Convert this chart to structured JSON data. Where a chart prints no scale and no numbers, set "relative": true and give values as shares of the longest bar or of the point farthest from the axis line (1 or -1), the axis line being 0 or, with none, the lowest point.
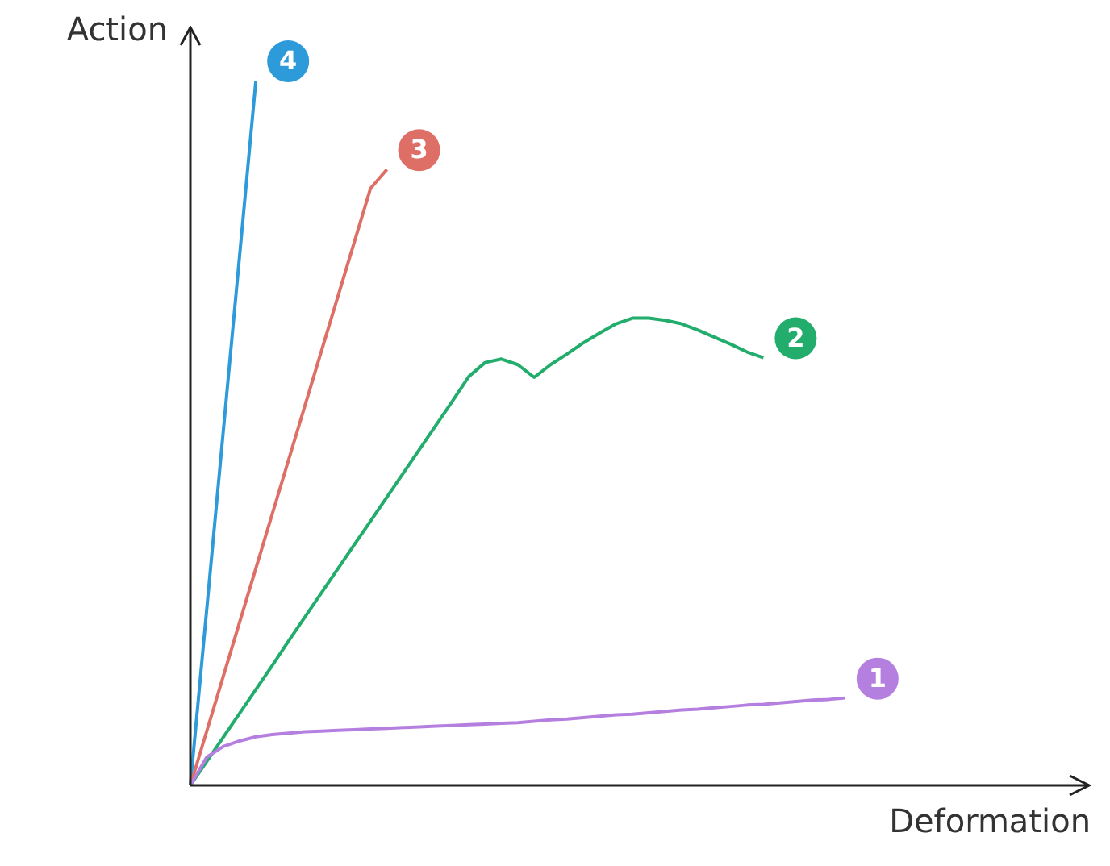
{
  "chart_data": {
    "type": "line",
    "xlabel": "Deformation",
    "ylabel": "Action",
    "relative": true,
    "legend": false,
    "grid": false,
    "marker": "none",
    "line_style": "solid",
    "categories": [
      null,
      null,
      null,
      null,
      null,
      null,
      null,
      null,
      null,
      null,
      null,
      null,
      null,
      null,
      null,
      null,
      null,
      null,
      null,
      null,
      null,
      null,
      null,
      null,
      null,
      null,
      null,
      null,
      null,
      null,
      null,
      null,
      null,
      null,
      null,
      null,
      null,
      null,
      null,
      null,
      null,
      null,
      null,
      null,
      null,
      null,
      null,
      null,
      null,
      null,
      null,
      null,
      null,
      null,
      null
    ],
    "series": [
      {
        "name": "1",
        "color": "#b57fe0",
        "values": [
          0,
          0.04,
          0.055,
          0.063,
          0.069,
          0.072,
          0.074,
          0.076,
          0.077,
          0.078,
          0.079,
          0.08,
          0.081,
          0.082,
          0.083,
          0.084,
          0.085,
          0.086,
          0.087,
          0.088,
          0.089,
          0.091,
          0.093,
          0.094,
          0.096,
          0.098,
          0.1,
          0.101,
          0.103,
          0.105,
          0.107,
          0.108,
          0.11,
          0.112,
          0.114,
          0.115,
          0.117,
          0.119,
          0.121,
          0.122,
          0.124,
          null,
          null,
          null,
          null,
          null,
          null,
          null,
          null,
          null,
          null,
          null,
          null,
          null,
          null
        ]
      },
      {
        "name": "2",
        "color": "#22ad6c",
        "values": [
          0,
          0.034,
          0.068,
          0.102,
          0.136,
          0.17,
          0.205,
          0.239,
          0.273,
          0.307,
          0.341,
          0.375,
          0.409,
          0.443,
          0.477,
          0.511,
          0.545,
          0.58,
          0.6,
          0.605,
          0.597,
          0.579,
          0.597,
          0.612,
          0.628,
          0.642,
          0.655,
          0.663,
          0.663,
          0.66,
          0.655,
          0.646,
          0.636,
          0.626,
          0.615,
          0.607,
          null,
          null,
          null,
          null,
          null,
          null,
          null,
          null,
          null,
          null,
          null,
          null,
          null,
          null,
          null,
          null,
          null,
          null,
          null
        ]
      },
      {
        "name": "3",
        "color": "#de6f66",
        "values": [
          0,
          0.077,
          0.154,
          0.231,
          0.308,
          0.385,
          0.462,
          0.539,
          0.616,
          0.693,
          0.77,
          0.847,
          0.874,
          null,
          null,
          null,
          null,
          null,
          null,
          null,
          null,
          null,
          null,
          null,
          null,
          null,
          null,
          null,
          null,
          null,
          null,
          null,
          null,
          null,
          null,
          null,
          null,
          null,
          null,
          null,
          null,
          null,
          null,
          null,
          null,
          null,
          null,
          null,
          null,
          null,
          null,
          null,
          null,
          null,
          null
        ]
      },
      {
        "name": "4",
        "color": "#2d9ada",
        "values": [
          0,
          0.25,
          0.5,
          0.75,
          1,
          null,
          null,
          null,
          null,
          null,
          null,
          null,
          null,
          null,
          null,
          null,
          null,
          null,
          null,
          null,
          null,
          null,
          null,
          null,
          null,
          null,
          null,
          null,
          null,
          null,
          null,
          null,
          null,
          null,
          null,
          null,
          null,
          null,
          null,
          null,
          null,
          null,
          null,
          null,
          null,
          null,
          null,
          null,
          null,
          null,
          null,
          null,
          null,
          null,
          null
        ]
      }
    ]
  }
}
